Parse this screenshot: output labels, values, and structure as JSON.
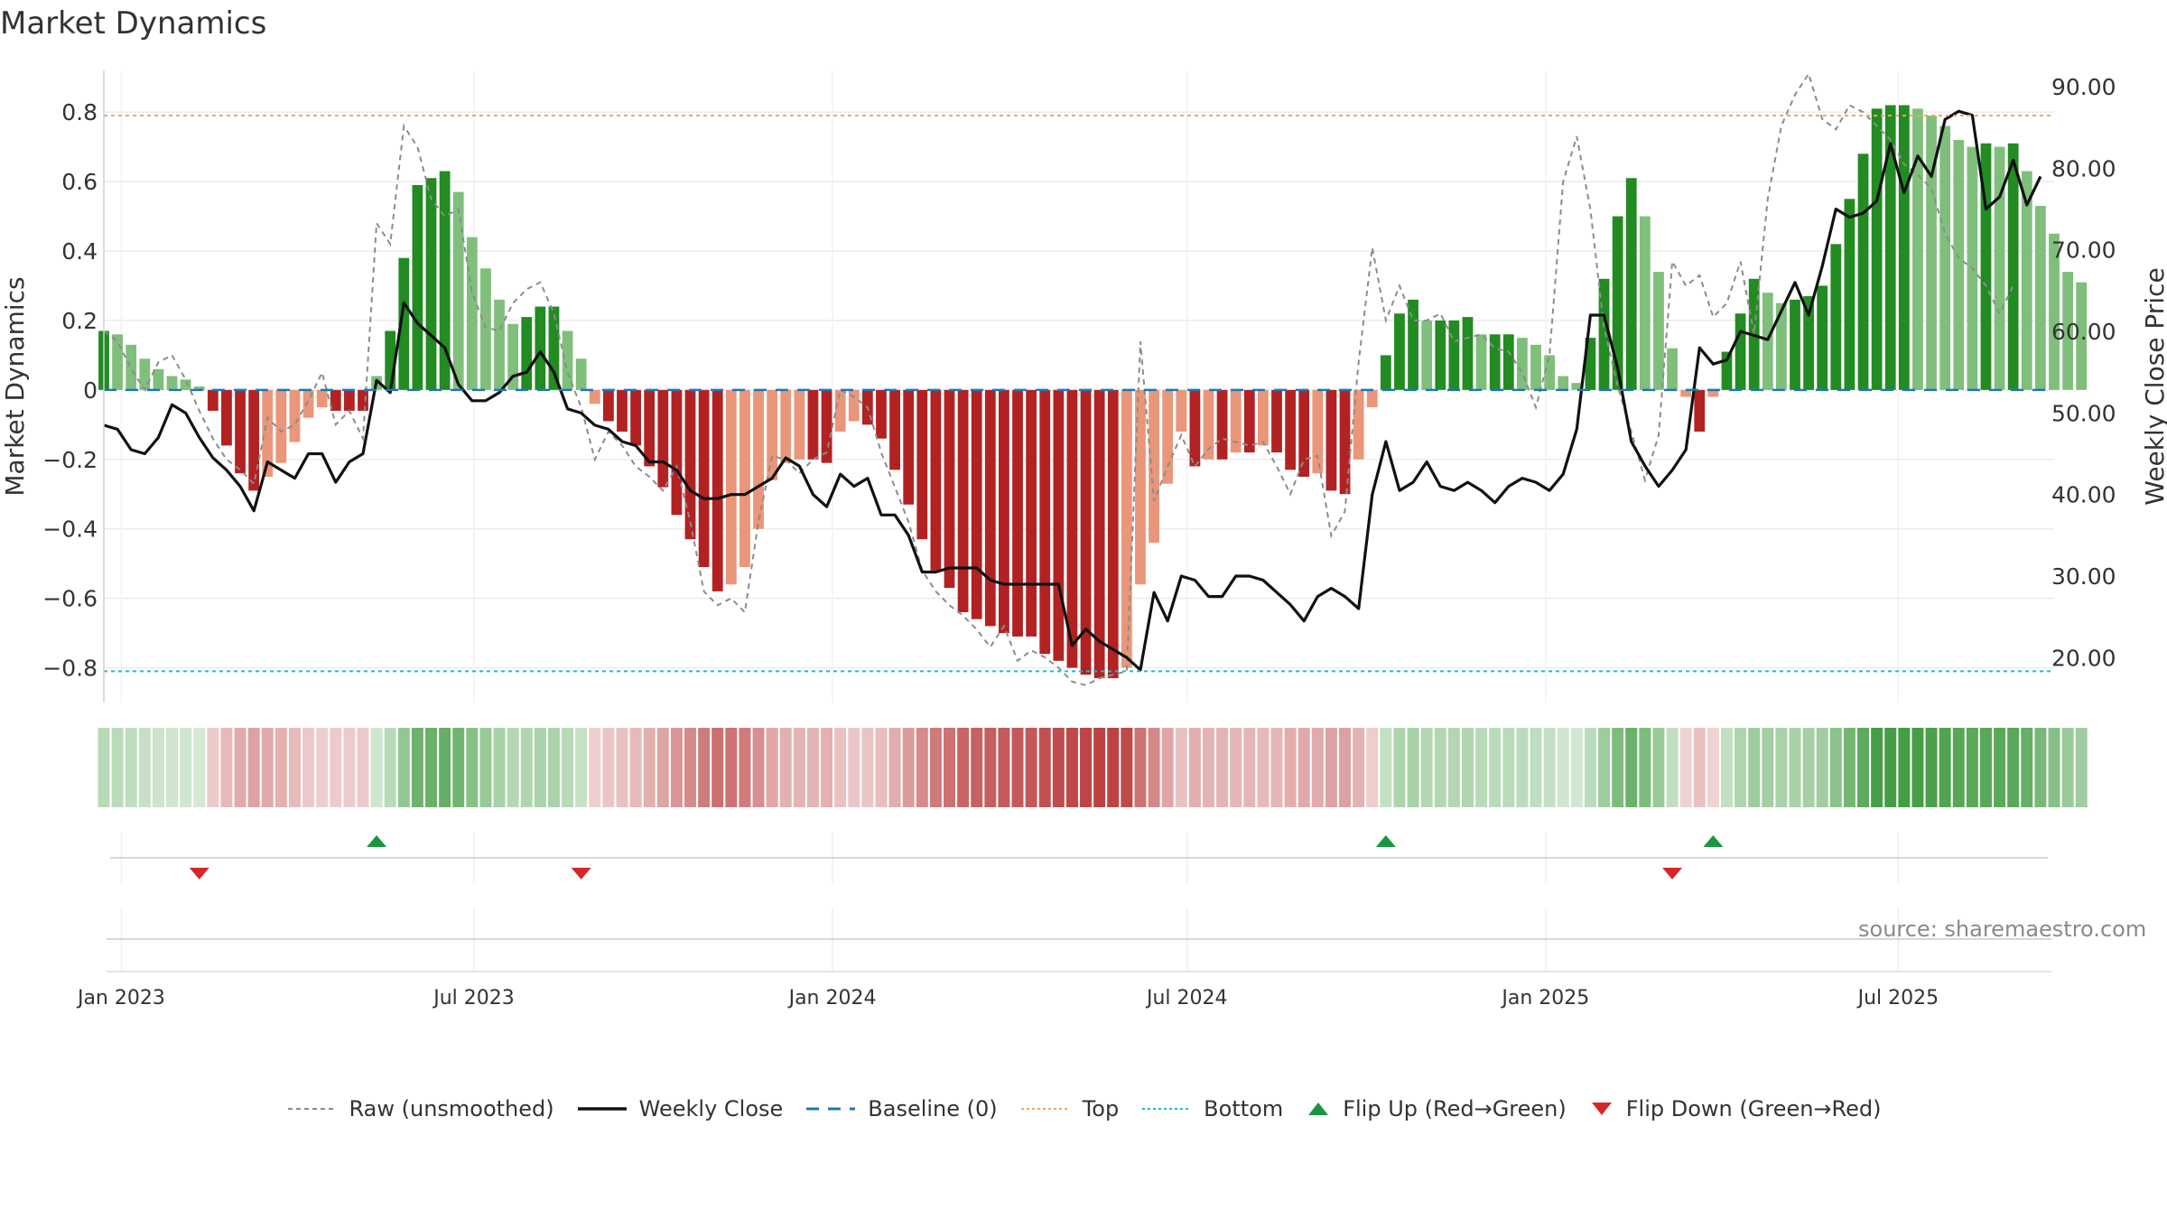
{
  "title": "Market Dynamics",
  "source": "source: sharemaestro.com",
  "legend": [
    {
      "label": "Raw (unsmoothed)",
      "kind": "dashed-gray"
    },
    {
      "label": "Weekly Close",
      "kind": "solid-black"
    },
    {
      "label": "Baseline (0)",
      "kind": "dashed-blue"
    },
    {
      "label": "Top",
      "kind": "dotted-orange"
    },
    {
      "label": "Bottom",
      "kind": "dotted-cyan"
    },
    {
      "label": "Flip Up (Red→Green)",
      "kind": "triangle-up"
    },
    {
      "label": "Flip Down (Green→Red)",
      "kind": "triangle-down"
    }
  ],
  "colors": {
    "pos_strong": "#228b22",
    "pos_weak": "#7fbf7b",
    "neg_strong": "#b22222",
    "neg_weak": "#e9967a",
    "price": "#111111",
    "raw": "#8c8c8c",
    "baseline": "#1f77b4",
    "top": "#f4a460",
    "bottom": "#17becf",
    "flip_up": "#1a9641",
    "flip_down": "#d62728"
  },
  "chart_data": {
    "type": "bar",
    "title": "Market Dynamics",
    "ylabel": "Market Dynamics",
    "y2label": "Weekly Close Price",
    "ylim": [
      -0.9,
      0.92
    ],
    "y2lim": [
      14.5,
      92.0
    ],
    "yticks": [
      0.8,
      0.6,
      0.4,
      0.2,
      0,
      -0.2,
      -0.4,
      -0.6,
      -0.8
    ],
    "ytick_labels": [
      "0.8",
      "0.6",
      "0.4",
      "0.2",
      "0",
      "−0.2",
      "−0.4",
      "−0.6",
      "−0.8"
    ],
    "y2ticks": [
      90,
      80,
      70,
      60,
      50,
      40,
      30,
      20
    ],
    "y2tick_labels": [
      "90.00",
      "80.00",
      "70.00",
      "60.00",
      "50.00",
      "40.00",
      "30.00",
      "20.00"
    ],
    "x_range": [
      "2022-12-23",
      "2025-09-19"
    ],
    "xtick_dates": [
      "2023-01-01",
      "2023-07-01",
      "2024-01-01",
      "2024-07-01",
      "2025-01-01",
      "2025-07-01"
    ],
    "xtick_labels": [
      "Jan 2023",
      "Jul 2023",
      "Jan 2024",
      "Jul 2024",
      "Jan 2025",
      "Jul 2025"
    ],
    "start_week": "2022-12-23",
    "top_line": 0.79,
    "bottom_line": -0.81,
    "baseline": 0,
    "grid": true,
    "legend_position": "bottom",
    "values": [
      0.17,
      0.16,
      0.13,
      0.09,
      0.06,
      0.04,
      0.03,
      0.01,
      -0.06,
      -0.16,
      -0.24,
      -0.29,
      -0.25,
      -0.21,
      -0.15,
      -0.08,
      -0.05,
      -0.06,
      -0.06,
      -0.06,
      0.04,
      0.17,
      0.38,
      0.59,
      0.61,
      0.63,
      0.57,
      0.44,
      0.35,
      0.26,
      0.19,
      0.21,
      0.24,
      0.24,
      0.17,
      0.09,
      -0.04,
      -0.09,
      -0.12,
      -0.16,
      -0.22,
      -0.28,
      -0.36,
      -0.43,
      -0.51,
      -0.58,
      -0.56,
      -0.51,
      -0.4,
      -0.26,
      -0.21,
      -0.2,
      -0.2,
      -0.21,
      -0.12,
      -0.09,
      -0.1,
      -0.14,
      -0.23,
      -0.33,
      -0.43,
      -0.52,
      -0.57,
      -0.64,
      -0.66,
      -0.68,
      -0.7,
      -0.71,
      -0.71,
      -0.76,
      -0.78,
      -0.8,
      -0.82,
      -0.83,
      -0.83,
      -0.8,
      -0.56,
      -0.44,
      -0.27,
      -0.12,
      -0.22,
      -0.2,
      -0.2,
      -0.18,
      -0.18,
      -0.16,
      -0.18,
      -0.23,
      -0.25,
      -0.24,
      -0.29,
      -0.3,
      -0.2,
      -0.05,
      0.1,
      0.22,
      0.26,
      0.2,
      0.2,
      0.2,
      0.21,
      0.16,
      0.16,
      0.16,
      0.15,
      0.13,
      0.1,
      0.04,
      0.02,
      0.15,
      0.32,
      0.5,
      0.61,
      0.5,
      0.34,
      0.12,
      -0.02,
      -0.12,
      -0.02,
      0.11,
      0.22,
      0.32,
      0.28,
      0.25,
      0.26,
      0.27,
      0.3,
      0.42,
      0.55,
      0.68,
      0.81,
      0.82,
      0.82,
      0.81,
      0.79,
      0.76,
      0.72,
      0.7,
      0.71,
      0.7,
      0.71,
      0.63,
      0.53,
      0.45,
      0.34,
      0.31
    ],
    "weekly_close": [
      48.5,
      48.0,
      45.5,
      45.0,
      47.0,
      51.0,
      50.0,
      47.0,
      44.5,
      43.0,
      41.0,
      38.0,
      44.0,
      43.0,
      42.0,
      45.0,
      45.0,
      41.5,
      44.0,
      45.0,
      54.0,
      52.5,
      63.5,
      61.0,
      59.5,
      58.0,
      53.5,
      51.5,
      51.5,
      52.5,
      54.5,
      55.0,
      57.5,
      55.0,
      50.5,
      50.0,
      48.5,
      48.0,
      46.5,
      46.0,
      44.0,
      44.0,
      43.0,
      40.5,
      39.5,
      39.5,
      40.0,
      40.0,
      41.0,
      42.0,
      44.5,
      43.5,
      40.0,
      38.5,
      42.5,
      41.0,
      42.0,
      37.5,
      37.5,
      35.0,
      30.5,
      30.5,
      31.0,
      31.0,
      31.0,
      29.5,
      29.0,
      29.0,
      29.0,
      29.0,
      29.0,
      21.5,
      23.5,
      22.0,
      21.0,
      20.0,
      18.5,
      28.0,
      24.5,
      30.0,
      29.5,
      27.5,
      27.5,
      30.0,
      30.0,
      29.5,
      28.0,
      26.5,
      24.5,
      27.5,
      28.5,
      27.5,
      26.0,
      40.0,
      46.5,
      40.5,
      41.5,
      44.0,
      41.0,
      40.5,
      41.5,
      40.5,
      39.0,
      41.0,
      42.0,
      41.5,
      40.5,
      42.5,
      48.0,
      62.0,
      62.0,
      55.5,
      46.5,
      43.5,
      41.0,
      43.0,
      45.5,
      58.0,
      56.0,
      56.5,
      60.0,
      59.5,
      59.0,
      62.5,
      66.0,
      62.0,
      68.0,
      75.0,
      74.0,
      74.5,
      76.0,
      83.0,
      77.0,
      81.5,
      79.0,
      86.0,
      87.0,
      86.5,
      75.0,
      76.5,
      81.0,
      75.5,
      79.0
    ],
    "raw_values": [
      0.17,
      0.14,
      0.06,
      0.0,
      0.08,
      0.1,
      0.03,
      -0.06,
      -0.14,
      -0.2,
      -0.23,
      -0.27,
      -0.08,
      -0.12,
      -0.1,
      -0.03,
      0.05,
      -0.1,
      -0.06,
      -0.14,
      0.48,
      0.42,
      0.76,
      0.7,
      0.55,
      0.5,
      0.52,
      0.28,
      0.18,
      0.17,
      0.25,
      0.29,
      0.31,
      0.22,
      0.05,
      -0.05,
      -0.2,
      -0.12,
      -0.16,
      -0.22,
      -0.25,
      -0.29,
      -0.22,
      -0.38,
      -0.58,
      -0.62,
      -0.6,
      -0.64,
      -0.38,
      -0.19,
      -0.2,
      -0.24,
      -0.2,
      -0.18,
      0.0,
      -0.02,
      -0.05,
      -0.18,
      -0.28,
      -0.38,
      -0.52,
      -0.58,
      -0.62,
      -0.65,
      -0.69,
      -0.74,
      -0.68,
      -0.78,
      -0.75,
      -0.77,
      -0.8,
      -0.84,
      -0.85,
      -0.83,
      -0.82,
      -0.81,
      0.14,
      -0.32,
      -0.22,
      -0.13,
      -0.22,
      -0.17,
      -0.14,
      -0.15,
      -0.16,
      -0.15,
      -0.22,
      -0.3,
      -0.2,
      -0.19,
      -0.42,
      -0.35,
      0.08,
      0.41,
      0.2,
      0.3,
      0.2,
      0.2,
      0.22,
      0.14,
      0.15,
      0.16,
      0.12,
      0.11,
      0.05,
      -0.05,
      0.1,
      0.6,
      0.73,
      0.52,
      0.18,
      0.01,
      -0.12,
      -0.26,
      -0.13,
      0.37,
      0.3,
      0.33,
      0.21,
      0.25,
      0.37,
      0.16,
      0.55,
      0.76,
      0.85,
      0.91,
      0.78,
      0.75,
      0.82,
      0.8,
      0.76,
      0.72,
      0.65,
      0.62,
      0.58,
      0.45,
      0.38,
      0.35,
      0.3,
      0.22,
      0.3
    ],
    "regime_strip": "Color per week: green shades when Market Dynamics > 0, red shades when < 0; intensity follows magnitude.",
    "flip_up_weeks": [
      20,
      94,
      118
    ],
    "flip_down_weeks": [
      7,
      35,
      115
    ]
  }
}
